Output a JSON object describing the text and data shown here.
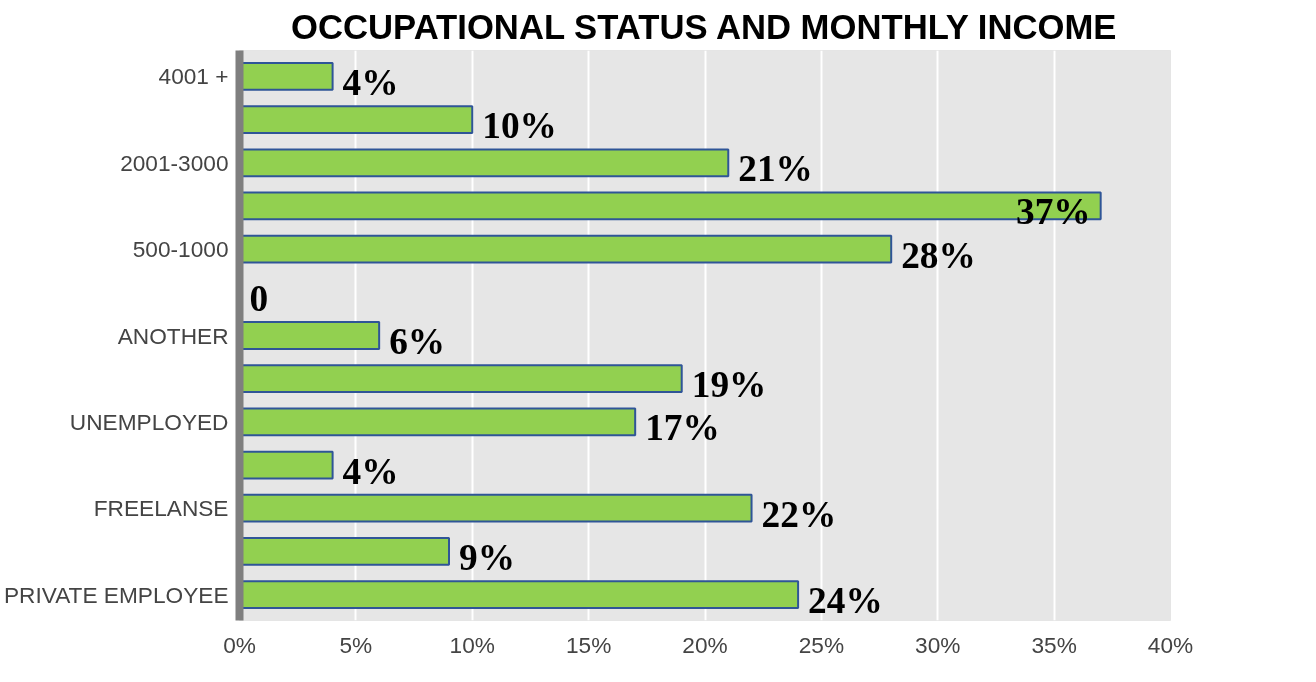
{
  "chart_data": {
    "type": "bar",
    "orientation": "horizontal",
    "title": "OCCUPATIONAL STATUS AND MONTHLY INCOME",
    "categories": [
      "4001 +",
      null,
      "2001-3000",
      null,
      "500-1000",
      null,
      "ANOTHER",
      null,
      "UNEMPLOYED",
      null,
      "FREELANSE",
      null,
      "PRIVATE EMPLOYEE"
    ],
    "values": [
      4,
      10,
      21,
      37,
      28,
      0,
      6,
      19,
      17,
      4,
      22,
      9,
      24
    ],
    "value_labels": [
      "4%",
      "10%",
      "21%",
      "37%",
      "28%",
      "0",
      "6%",
      "19%",
      "17%",
      "4%",
      "22%",
      "9%",
      "24%"
    ],
    "color": "#92d050",
    "xlim": [
      0,
      40
    ],
    "xticks": [
      {
        "value": 0,
        "label": "0%"
      },
      {
        "value": 5,
        "label": "5%"
      },
      {
        "value": 10,
        "label": "10%"
      },
      {
        "value": 15,
        "label": "15%"
      },
      {
        "value": 20,
        "label": "20%"
      },
      {
        "value": 25,
        "label": "25%"
      },
      {
        "value": 30,
        "label": "30%"
      },
      {
        "value": 35,
        "label": "35%"
      },
      {
        "value": 40,
        "label": "40%"
      }
    ],
    "grid": "x"
  }
}
